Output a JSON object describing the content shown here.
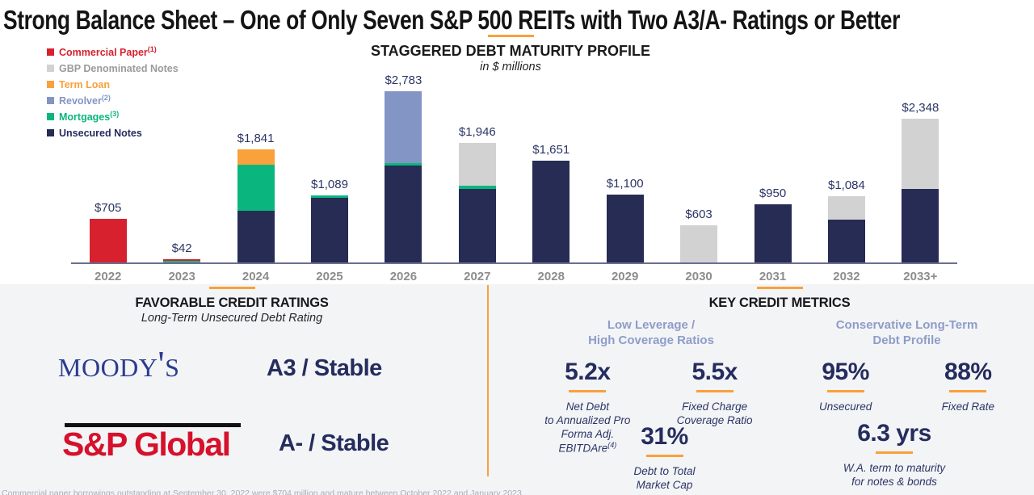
{
  "slide": {
    "title": "Strong Balance Sheet – One of Only Seven S&P 500 REITs with Two A3/A- Ratings or Better",
    "footnote": "Commercial paper borrowings outstanding at September 30, 2022 were $704 million and mature between October 2022 and January 2023"
  },
  "colors": {
    "commercial_paper": "#D7212E",
    "gbp_notes": "#D2D2D2",
    "term_loan": "#F9A13B",
    "revolver": "#8395C5",
    "mortgages": "#0AB67E",
    "unsecured_notes": "#262C54",
    "accent_orange": "#F9A13B",
    "axis_line": "#6B6F90",
    "value_label": "#2B3566",
    "year_label": "#8D8D8D",
    "panel_bg": "#F3F4F6",
    "subheading_blue": "#8E9CC9",
    "metric_navy": "#252C5E",
    "gbp_label_gray": "#9B9B9B",
    "moodys_blue": "#2A3B8F",
    "sp_red": "#D6112C"
  },
  "legend": {
    "items": [
      {
        "label": "Commercial Paper",
        "sup": "(1)",
        "color_key": "commercial_paper",
        "text_color": "#D7212E"
      },
      {
        "label": "GBP Denominated Notes",
        "sup": "",
        "color_key": "gbp_notes",
        "text_color": "#9B9B9B"
      },
      {
        "label": "Term Loan",
        "sup": "",
        "color_key": "term_loan",
        "text_color": "#F9A13B"
      },
      {
        "label": "Revolver",
        "sup": "(2)",
        "color_key": "revolver",
        "text_color": "#8395C5"
      },
      {
        "label": "Mortgages",
        "sup": "(3)",
        "color_key": "mortgages",
        "text_color": "#0AB67E"
      },
      {
        "label": "Unsecured Notes",
        "sup": "",
        "color_key": "unsecured_notes",
        "text_color": "#252C5E"
      }
    ]
  },
  "chart_data": {
    "type": "bar",
    "stacked": true,
    "title": "STAGGERED DEBT MATURITY PROFILE",
    "subtitle": "in $ millions",
    "ylabel": "$ millions",
    "ylim": [
      0,
      2900
    ],
    "grid": false,
    "legend_position": "top-left",
    "categories": [
      "2022",
      "2023",
      "2024",
      "2025",
      "2026",
      "2027",
      "2028",
      "2029",
      "2030",
      "2031",
      "2032",
      "2033+"
    ],
    "totals": [
      705,
      42,
      1841,
      1089,
      2783,
      1946,
      1651,
      1100,
      603,
      950,
      1084,
      2348
    ],
    "total_labels": [
      "$705",
      "$42",
      "$1,841",
      "$1,089",
      "$2,783",
      "$1,946",
      "$1,651",
      "$1,100",
      "$603",
      "$950",
      "$1,084",
      "$2,348"
    ],
    "series_order_bottom_to_top": [
      "unsecured_notes",
      "mortgages",
      "term_loan",
      "revolver",
      "gbp_notes",
      "commercial_paper"
    ],
    "series": [
      {
        "name": "Unsecured Notes",
        "key": "unsecured_notes",
        "values": [
          0,
          0,
          841,
          1050,
          1575,
          1200,
          1651,
          1100,
          0,
          950,
          700,
          1200
        ]
      },
      {
        "name": "Mortgages",
        "key": "mortgages",
        "values": [
          0,
          20,
          750,
          39,
          40,
          46,
          0,
          0,
          0,
          0,
          0,
          0
        ]
      },
      {
        "name": "Term Loan",
        "key": "term_loan",
        "values": [
          0,
          0,
          250,
          0,
          0,
          0,
          0,
          0,
          0,
          0,
          0,
          0
        ]
      },
      {
        "name": "Revolver",
        "key": "revolver",
        "values": [
          0,
          0,
          0,
          0,
          1168,
          0,
          0,
          0,
          0,
          0,
          0,
          0
        ]
      },
      {
        "name": "GBP Denominated Notes",
        "key": "gbp_notes",
        "values": [
          0,
          0,
          0,
          0,
          0,
          700,
          0,
          0,
          603,
          0,
          384,
          1148
        ]
      },
      {
        "name": "Commercial Paper",
        "key": "commercial_paper",
        "values": [
          705,
          22,
          0,
          0,
          0,
          0,
          0,
          0,
          0,
          0,
          0,
          0
        ]
      }
    ]
  },
  "favorable_credit_ratings": {
    "title": "FAVORABLE CREDIT RATINGS",
    "subtitle": "Long-Term Unsecured Debt Rating",
    "agencies": [
      {
        "name": "Moody's",
        "rating": "A3 / Stable"
      },
      {
        "name": "S&P Global",
        "rating": "A- / Stable"
      }
    ]
  },
  "key_credit_metrics": {
    "title": "KEY CREDIT METRICS",
    "groups": [
      {
        "subheading": "Low Leverage /\nHigh Coverage Ratios",
        "metrics": [
          {
            "value": "5.2x",
            "caption": "Net Debt\nto Annualized Pro\nForma Adj.\nEBITDAre",
            "caption_sup": "(4)"
          },
          {
            "value": "5.5x",
            "caption": "Fixed Charge\nCoverage Ratio",
            "caption_sup": ""
          }
        ]
      },
      {
        "subheading": "Conservative Long-Term\nDebt Profile",
        "metrics": [
          {
            "value": "95%",
            "caption": "Unsecured",
            "caption_sup": ""
          },
          {
            "value": "88%",
            "caption": "Fixed Rate",
            "caption_sup": ""
          }
        ]
      }
    ],
    "wide_metrics": [
      {
        "value": "31%",
        "caption": "Debt to Total\nMarket Cap"
      },
      {
        "value": "6.3 yrs",
        "caption": "W.A. term to maturity\nfor notes & bonds"
      }
    ]
  }
}
